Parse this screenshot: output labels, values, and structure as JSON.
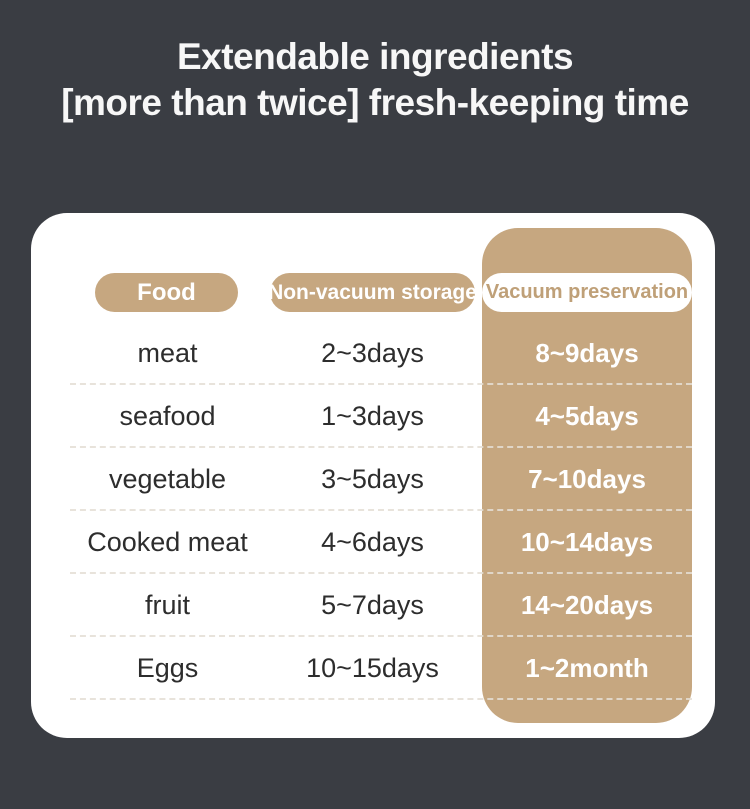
{
  "colors": {
    "page_background": "#3a3d43",
    "accent_tan": "#c6a780",
    "card_background": "#ffffff",
    "row_text": "#2d2d2d",
    "pill_text_on_tan": "#ffffff",
    "vacuum_pill_text": "#bfa078",
    "vacuum_value_text": "#ffffff"
  },
  "title": {
    "line1": "Extendable ingredients",
    "line2": "[more than twice] fresh-keeping time"
  },
  "table": {
    "headers": {
      "food": "Food",
      "non_vacuum": "Non-vacuum storage",
      "vacuum": "Vacuum preservation"
    },
    "rows": [
      {
        "food": "meat",
        "non_vacuum": "2~3days",
        "vacuum": "8~9days"
      },
      {
        "food": "seafood",
        "non_vacuum": "1~3days",
        "vacuum": "4~5days"
      },
      {
        "food": "vegetable",
        "non_vacuum": "3~5days",
        "vacuum": "7~10days"
      },
      {
        "food": "Cooked meat",
        "non_vacuum": "4~6days",
        "vacuum": "10~14days"
      },
      {
        "food": "fruit",
        "non_vacuum": "5~7days",
        "vacuum": "14~20days"
      },
      {
        "food": "Eggs",
        "non_vacuum": "10~15days",
        "vacuum": "1~2month"
      }
    ]
  },
  "chart_data": {
    "type": "table",
    "title": "Extendable ingredients [more than twice] fresh-keeping time",
    "columns": [
      "Food",
      "Non-vacuum storage",
      "Vacuum preservation"
    ],
    "rows": [
      [
        "meat",
        "2~3days",
        "8~9days"
      ],
      [
        "seafood",
        "1~3days",
        "4~5days"
      ],
      [
        "vegetable",
        "3~5days",
        "7~10days"
      ],
      [
        "Cooked meat",
        "4~6days",
        "10~14days"
      ],
      [
        "fruit",
        "5~7days",
        "14~20days"
      ],
      [
        "Eggs",
        "10~15days",
        "1~2month"
      ]
    ],
    "layout_hints": {
      "highlighted_column": "Vacuum preservation",
      "highlight_color": "#c6a780",
      "row_separator": "dashed"
    }
  }
}
